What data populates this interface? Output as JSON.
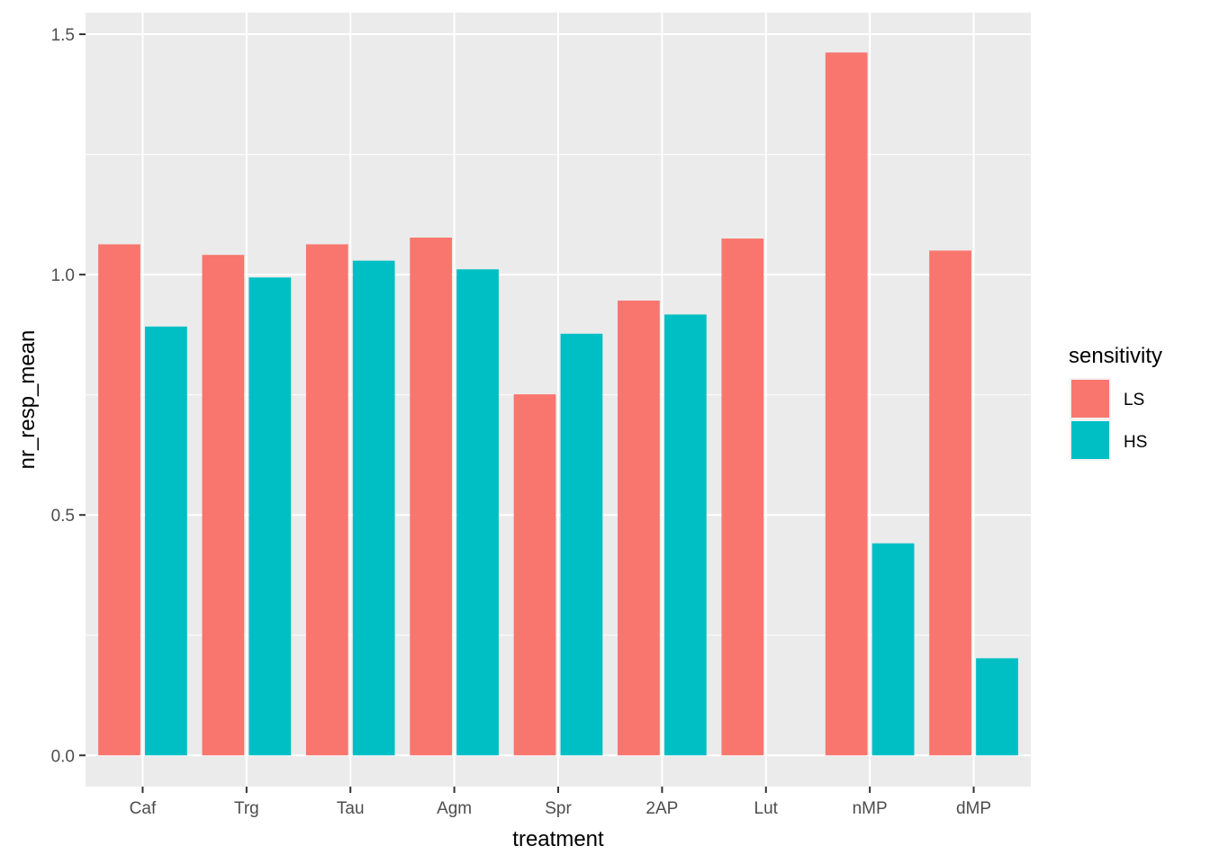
{
  "chart_data": {
    "type": "bar",
    "title": "",
    "xlabel": "treatment",
    "ylabel": "nr_resp_mean",
    "categories": [
      "Caf",
      "Trg",
      "Tau",
      "Agm",
      "Spr",
      "2AP",
      "Lut",
      "nMP",
      "dMP"
    ],
    "series": [
      {
        "name": "LS",
        "color": "#F8766D",
        "values": [
          1.063,
          1.041,
          1.063,
          1.077,
          0.751,
          0.946,
          1.075,
          1.462,
          1.05
        ]
      },
      {
        "name": "HS",
        "color": "#00BFC4",
        "values": [
          0.892,
          0.994,
          1.029,
          1.011,
          0.877,
          0.917,
          null,
          0.441,
          0.202
        ]
      }
    ],
    "ylim": [
      -0.065,
      1.545
    ],
    "yticks": [
      0.0,
      0.5,
      1.0,
      1.5
    ],
    "ytick_labels": [
      "0.0",
      "0.5",
      "1.0",
      "1.5"
    ],
    "grid": true,
    "panel_background": "#EBEBEB",
    "legend": {
      "title": "sensitivity",
      "position": "right",
      "entries": [
        "LS",
        "HS"
      ]
    }
  }
}
